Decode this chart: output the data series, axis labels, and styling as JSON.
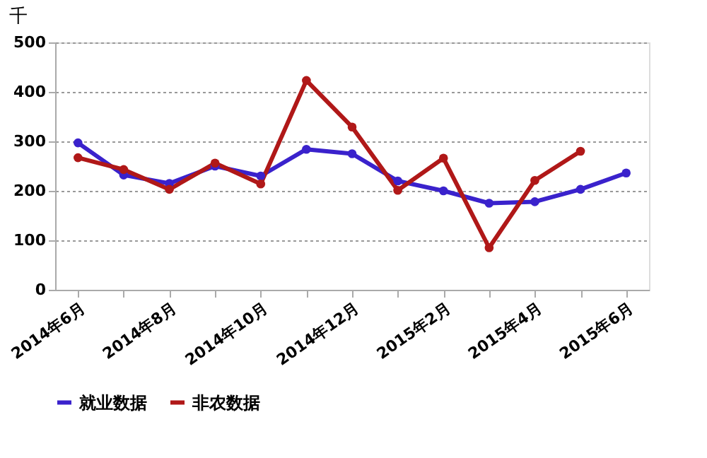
{
  "chart_data": {
    "type": "line",
    "ylabel": "千",
    "categories": [
      "2014年6月",
      null,
      "2014年8月",
      null,
      "2014年10月",
      null,
      "2014年12月",
      null,
      "2015年2月",
      null,
      "2015年4月",
      null,
      "2015年6月"
    ],
    "series": [
      {
        "name": "就业数据",
        "color": "#3a22cc",
        "values": [
          297,
          232,
          215,
          250,
          230,
          284,
          275,
          220,
          200,
          175,
          178,
          203,
          236
        ]
      },
      {
        "name": "非农数据",
        "color": "#b01818",
        "values": [
          267,
          243,
          203,
          256,
          214,
          423,
          329,
          201,
          266,
          85,
          221,
          280,
          null
        ]
      }
    ],
    "ylim": [
      0,
      500
    ],
    "yticks": [
      0,
      100,
      200,
      300,
      400,
      500
    ],
    "grid": "y",
    "legend": "bottom",
    "marker": "circle",
    "line_style": "solid"
  }
}
